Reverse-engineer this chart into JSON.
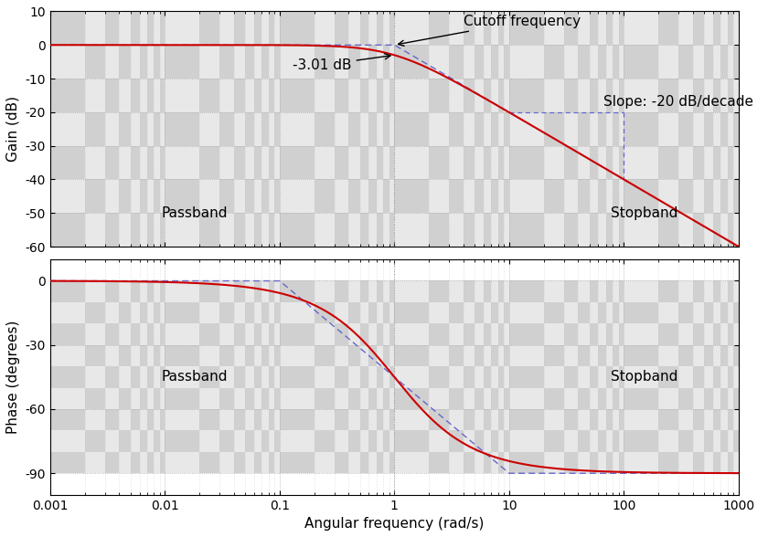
{
  "omega_min": 0.001,
  "omega_max": 1000,
  "omega_c": 1.0,
  "gain_ylim": [
    -60,
    10
  ],
  "gain_yticks": [
    10,
    0,
    -10,
    -20,
    -30,
    -40,
    -50,
    -60
  ],
  "phase_ylim": [
    -100,
    10
  ],
  "phase_yticks": [
    0,
    -30,
    -60,
    -90
  ],
  "xlabel": "Angular frequency (rad/s)",
  "ylabel_gain": "Gain (dB)",
  "ylabel_phase": "Phase (degrees)",
  "annotation_cutoff": "Cutoff frequency",
  "annotation_3db": "-3.01 dB",
  "annotation_slope": "Slope: -20 dB/decade",
  "label_passband": "Passband",
  "label_stopband": "Stopband",
  "line_color_main": "#cc0000",
  "line_color_approx": "#6666cc",
  "grid_color_major": "#bbbbbb",
  "grid_color_minor": "#cccccc",
  "bg_color": "#d8d8d8",
  "text_color": "#000000",
  "font_size": 11,
  "dpi": 100,
  "fig_width": 8.4,
  "fig_height": 5.88,
  "xtick_labels": [
    "0.001",
    "0.01",
    "0.1",
    "1",
    "10",
    "100",
    "1000"
  ],
  "xtick_values": [
    0.001,
    0.01,
    0.1,
    1,
    10,
    100,
    1000
  ]
}
